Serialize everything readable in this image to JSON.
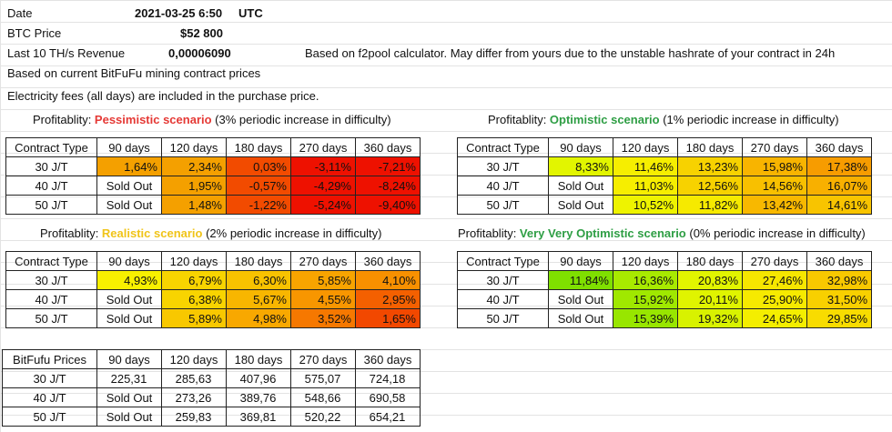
{
  "header": {
    "date_label": "Date",
    "date_value": "2021-03-25 6:50",
    "date_tz": "UTC",
    "btc_label": "BTC Price",
    "btc_value": "$52 800",
    "rev_label": "Last 10 TH/s Revenue",
    "rev_value": "0,00006090",
    "rev_note": "Based on f2pool calculator. May differ from yours due to the unstable hashrate of your contract in 24h",
    "line_contract": "Based on current BitFuFu mining contract prices",
    "line_fees": "Electricity fees (all days) are included in the purchase price."
  },
  "columns": [
    "Contract Type",
    "90 days",
    "120 days",
    "180 days",
    "270 days",
    "360 days"
  ],
  "prices_columns": [
    "BitFufu Prices",
    "90 days",
    "120 days",
    "180 days",
    "270 days",
    "360 days"
  ],
  "pessimistic": {
    "prefix": "Profitablity: ",
    "name": "Pessimistic scenario",
    "suffix": " (3% periodic increase in difficulty)",
    "rows": [
      {
        "type": "30 J/T",
        "cells": [
          "1,64%",
          "2,34%",
          "0,03%",
          "-3,11%",
          "-7,21%"
        ],
        "colors": [
          "#f4a000",
          "#f4a000",
          "#f24b00",
          "#ee1100",
          "#ee1100"
        ]
      },
      {
        "type": "40 J/T",
        "cells": [
          "Sold Out",
          "1,95%",
          "-0,57%",
          "-4,29%",
          "-8,24%"
        ],
        "colors": [
          "",
          "#f4a000",
          "#f24b00",
          "#ee1100",
          "#ee1100"
        ]
      },
      {
        "type": "50 J/T",
        "cells": [
          "Sold Out",
          "1,48%",
          "-1,22%",
          "-5,24%",
          "-9,40%"
        ],
        "colors": [
          "",
          "#f4a000",
          "#f24b00",
          "#ee1100",
          "#ee1100"
        ]
      }
    ]
  },
  "optimistic": {
    "prefix": "Profitablity: ",
    "name": "Optimistic scenario",
    "suffix": " (1% periodic increase in difficulty)",
    "rows": [
      {
        "type": "30 J/T",
        "cells": [
          "8,33%",
          "11,46%",
          "13,23%",
          "15,98%",
          "17,38%"
        ],
        "colors": [
          "#e2f500",
          "#f6ee00",
          "#f7d200",
          "#f8b400",
          "#f79c00"
        ]
      },
      {
        "type": "40 J/T",
        "cells": [
          "Sold Out",
          "11,03%",
          "12,56%",
          "14,56%",
          "16,07%"
        ],
        "colors": [
          "",
          "#f6ee00",
          "#f7d200",
          "#f8c000",
          "#f8b000"
        ]
      },
      {
        "type": "50 J/T",
        "cells": [
          "Sold Out",
          "10,52%",
          "11,82%",
          "13,42%",
          "14,61%"
        ],
        "colors": [
          "",
          "#eef300",
          "#f6ea00",
          "#f8b800",
          "#f8c400"
        ]
      }
    ]
  },
  "realistic": {
    "prefix": "Profitablity: ",
    "name": "Realistic scenario",
    "suffix": " (2% periodic increase in difficulty)",
    "rows": [
      {
        "type": "30 J/T",
        "cells": [
          "4,93%",
          "6,79%",
          "6,30%",
          "5,85%",
          "4,10%"
        ],
        "colors": [
          "#f8f000",
          "#f8d400",
          "#f8c200",
          "#f8a400",
          "#f89000"
        ]
      },
      {
        "type": "40 J/T",
        "cells": [
          "Sold Out",
          "6,38%",
          "5,67%",
          "4,55%",
          "2,95%"
        ],
        "colors": [
          "",
          "#f8d400",
          "#f8b600",
          "#f89600",
          "#f46000"
        ]
      },
      {
        "type": "50 J/T",
        "cells": [
          "Sold Out",
          "5,89%",
          "4,98%",
          "3,52%",
          "1,65%"
        ],
        "colors": [
          "",
          "#f8c800",
          "#f8a800",
          "#f67800",
          "#f24800"
        ]
      }
    ]
  },
  "very_optimistic": {
    "prefix": "Profitablity: ",
    "name": "Very Very Optimistic scenario",
    "suffix": " (0% periodic increase in difficulty)",
    "rows": [
      {
        "type": "30 J/T",
        "cells": [
          "11,84%",
          "16,36%",
          "20,83%",
          "27,46%",
          "32,98%"
        ],
        "colors": [
          "#7fe000",
          "#a8ea00",
          "#e2f500",
          "#f6e600",
          "#f8c800"
        ]
      },
      {
        "type": "40 J/T",
        "cells": [
          "Sold Out",
          "15,92%",
          "20,11%",
          "25,90%",
          "31,50%"
        ],
        "colors": [
          "",
          "#a0e800",
          "#e0f400",
          "#f6ea00",
          "#f8d000"
        ]
      },
      {
        "type": "50 J/T",
        "cells": [
          "Sold Out",
          "15,39%",
          "19,32%",
          "24,65%",
          "29,85%"
        ],
        "colors": [
          "",
          "#98e600",
          "#d8f200",
          "#f4ee00",
          "#f8dc00"
        ]
      }
    ]
  },
  "prices": {
    "rows": [
      {
        "type": "30 J/T",
        "cells": [
          "225,31",
          "285,63",
          "407,96",
          "575,07",
          "724,18"
        ]
      },
      {
        "type": "40 J/T",
        "cells": [
          "Sold Out",
          "273,26",
          "389,76",
          "548,66",
          "690,58"
        ]
      },
      {
        "type": "50 J/T",
        "cells": [
          "Sold Out",
          "259,83",
          "369,81",
          "520,22",
          "654,21"
        ]
      }
    ]
  }
}
